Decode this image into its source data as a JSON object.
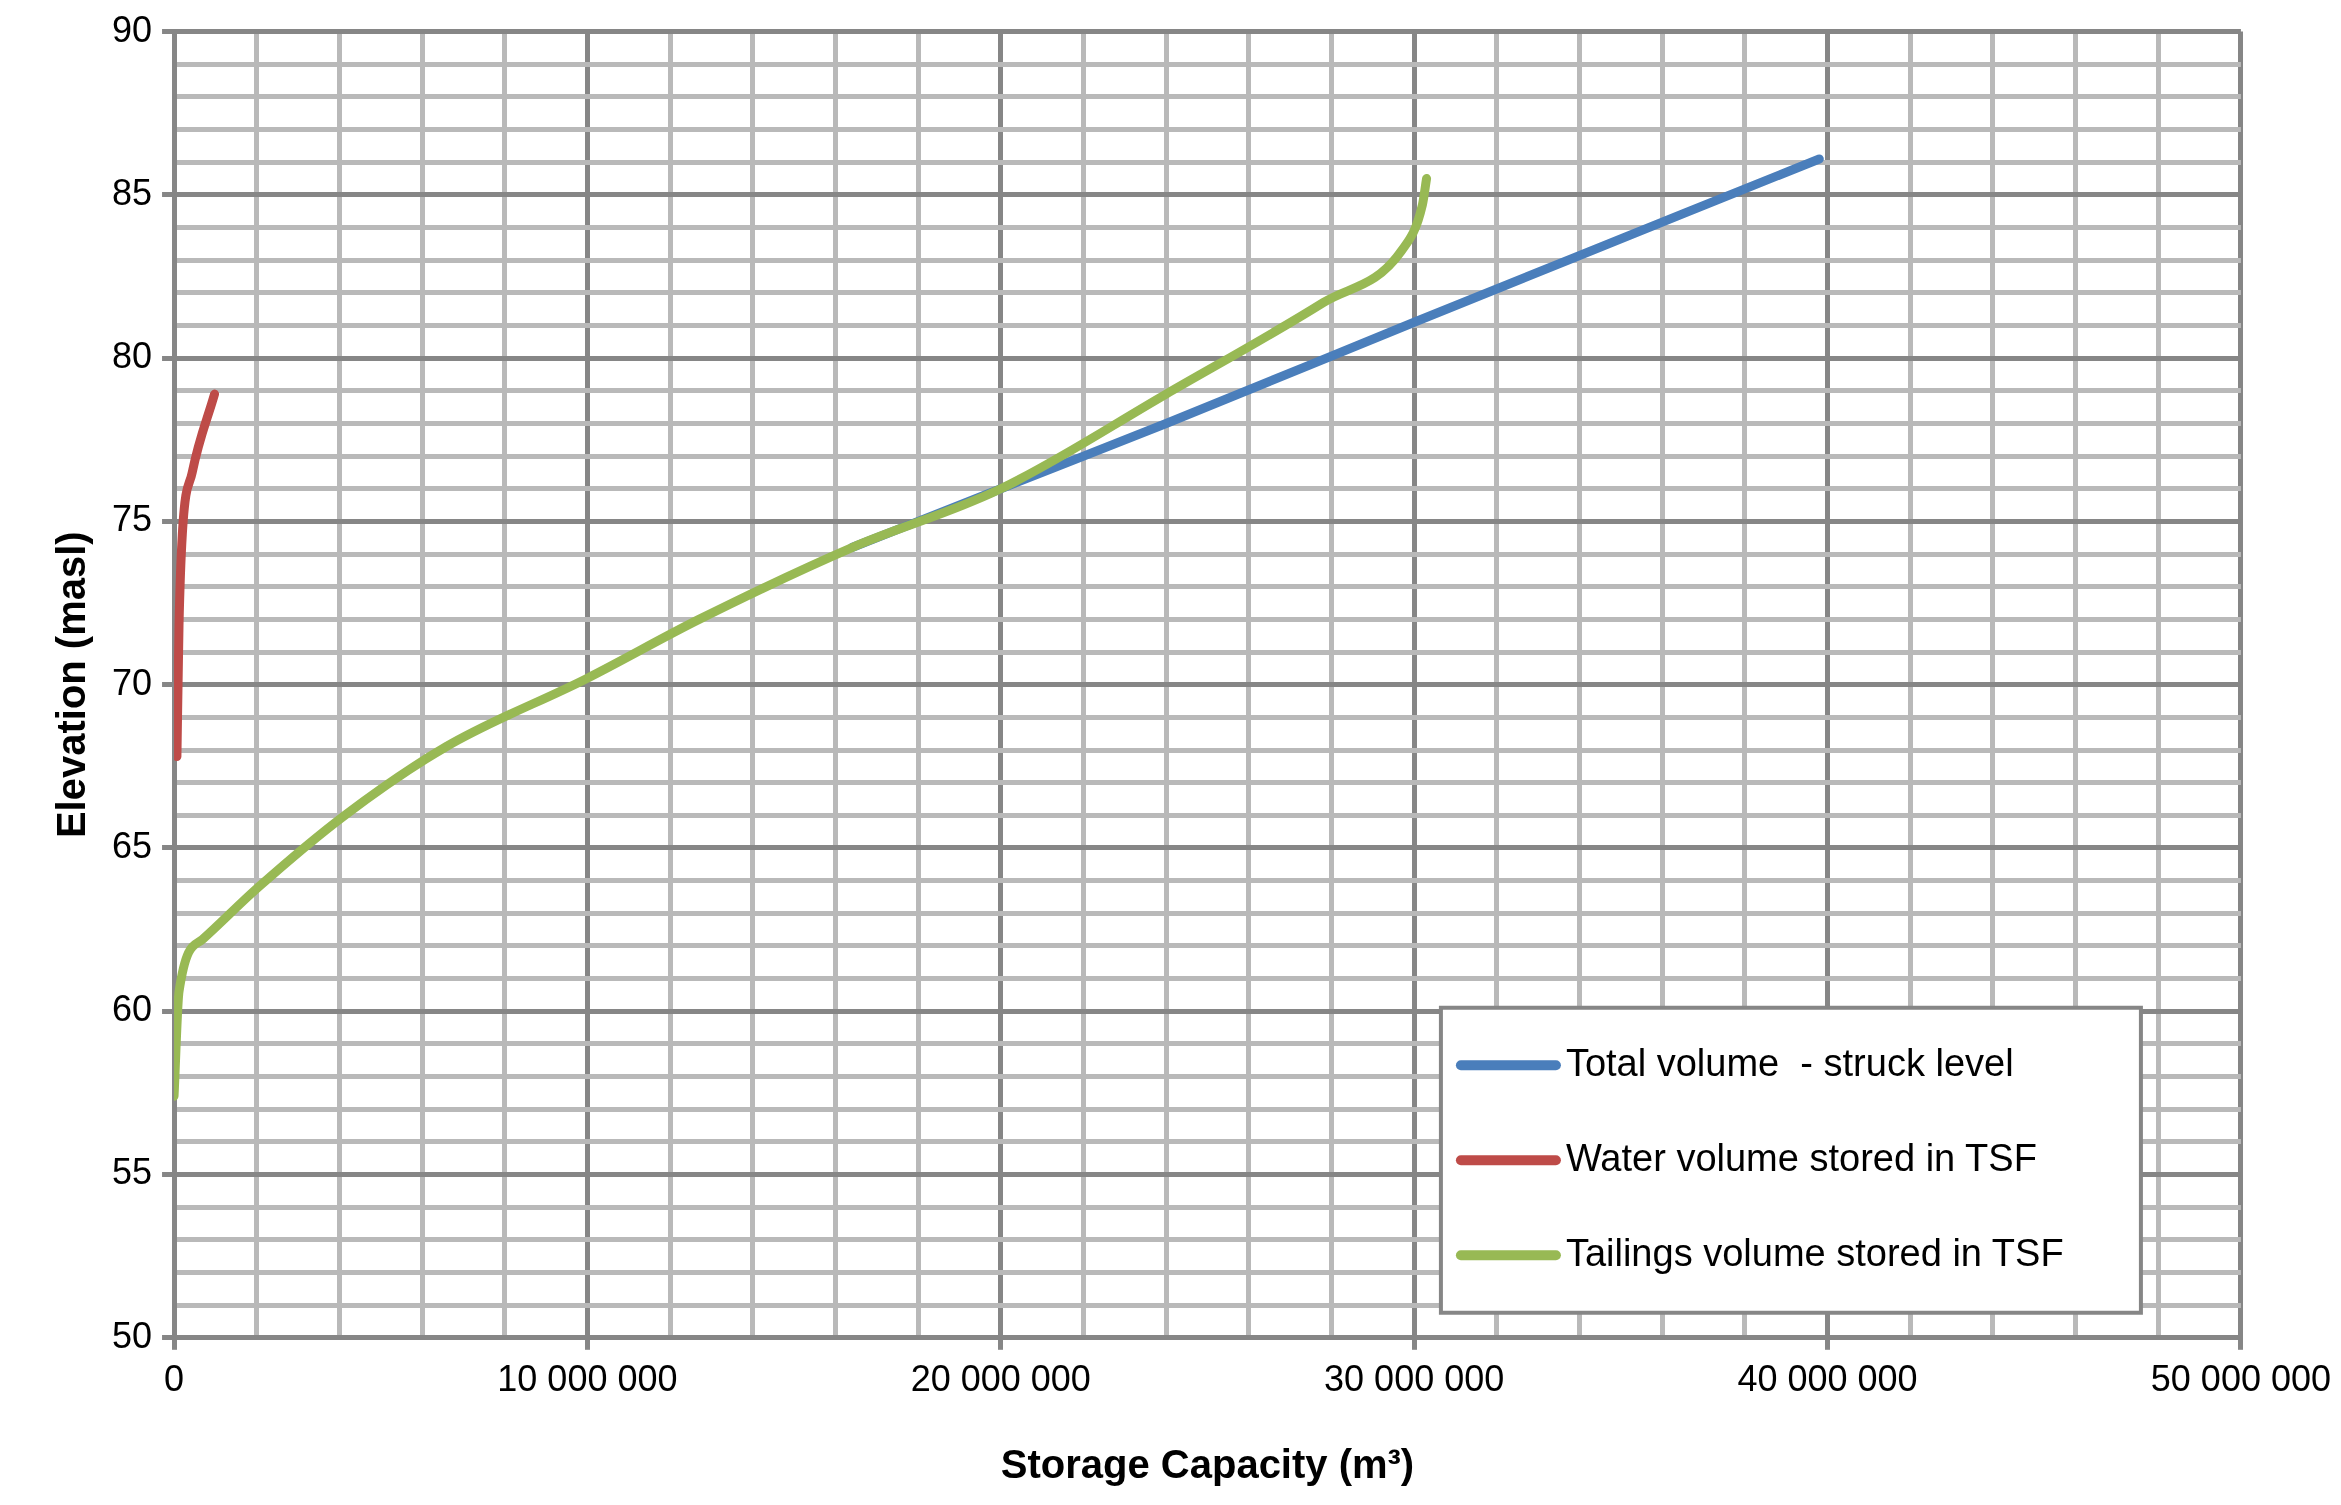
{
  "chart_data": {
    "type": "line",
    "xlabel": "Storage Capacity (m³)",
    "ylabel": "Elevation (masl)",
    "xlim": [
      0,
      50000000
    ],
    "xticks": [
      {
        "value": 0,
        "label": "0"
      },
      {
        "value": 10000000,
        "label": "10 000 000"
      },
      {
        "value": 20000000,
        "label": "20 000 000"
      },
      {
        "value": 30000000,
        "label": "30 000 000"
      },
      {
        "value": 40000000,
        "label": "40 000 000"
      },
      {
        "value": 50000000,
        "label": "50 000 000"
      }
    ],
    "ylim": [
      50,
      90
    ],
    "yticks": [
      50,
      55,
      60,
      65,
      70,
      75,
      80,
      85,
      90
    ],
    "grid": true,
    "legend": "bottom right",
    "marker": "none",
    "line_style": "solid",
    "series": [
      {
        "name": "Total volume  - struck level",
        "color": "#4a7ebb",
        "x": [
          16400000,
          20000000,
          24000000,
          30000000,
          39800000
        ],
        "values": [
          74.2,
          76.0,
          78.0,
          81.1,
          86.1
        ]
      },
      {
        "name": "Water volume stored in TSF",
        "color": "#be4b48",
        "x": [
          70000,
          120000,
          200000,
          440000,
          980000
        ],
        "values": [
          67.8,
          71.8,
          74.6,
          76.5,
          78.9
        ]
      },
      {
        "name": "Tailings volume stored in TSF",
        "color": "#98b954",
        "x": [
          0,
          120000,
          690000,
          2040000,
          4130000,
          6580000,
          10000000,
          12700000,
          16400000,
          20000000,
          24000000,
          27800000,
          29700000,
          30200000,
          30300000
        ],
        "values": [
          57.4,
          60.6,
          62.2,
          63.8,
          66.0,
          68.1,
          70.2,
          72.0,
          74.2,
          76.0,
          78.9,
          81.7,
          83.3,
          84.7,
          85.5
        ]
      }
    ]
  }
}
